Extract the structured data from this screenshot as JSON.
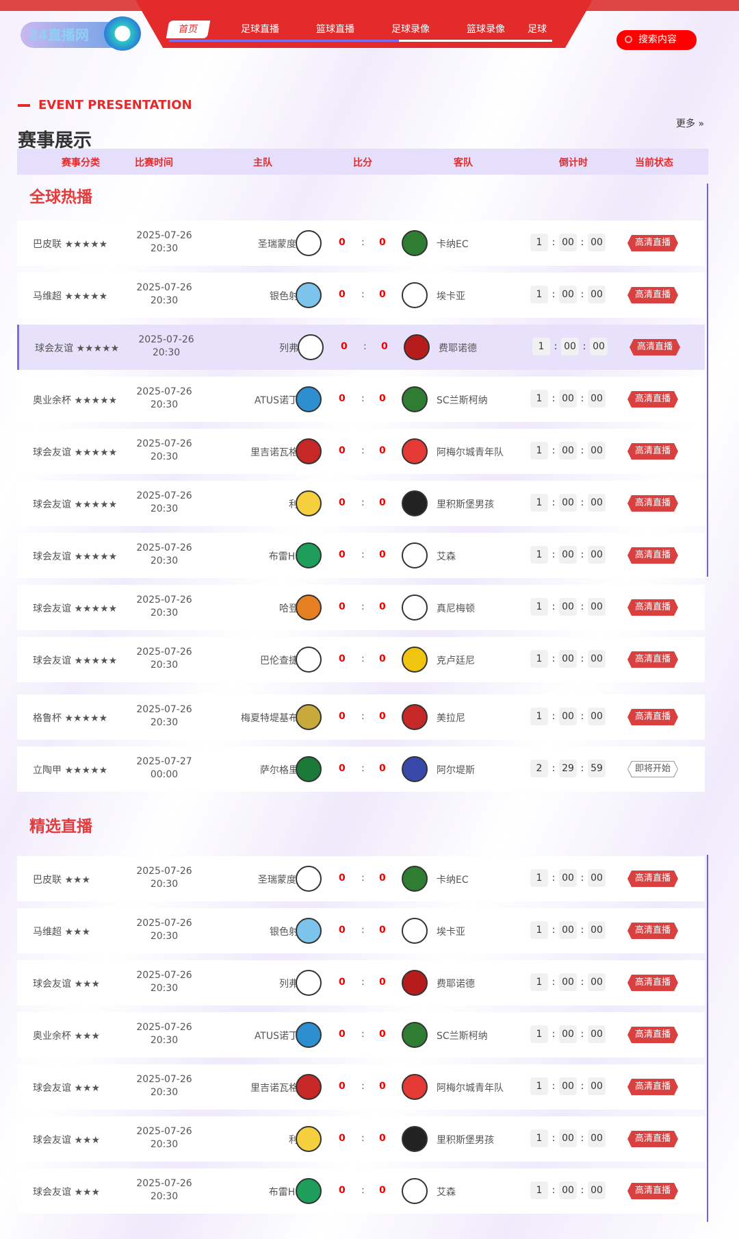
{
  "header": {
    "logo_text": "24直播网",
    "nav": [
      "首页",
      "足球直播",
      "篮球直播",
      "足球录像",
      "篮球录像",
      "足球"
    ],
    "search_label": "搜索内容"
  },
  "intro": {
    "en": "EVENT PRESENTATION",
    "title": "赛事展示",
    "more": "更多 »"
  },
  "table_headers": [
    "赛事分类",
    "比赛时间",
    "主队",
    "比分",
    "客队",
    "倒计时",
    "当前状态"
  ],
  "colors": {
    "accent": "#e32b2b",
    "highlight": "#e8e1fb",
    "border": "#6e64e0"
  },
  "sections": [
    {
      "title": "全球热播",
      "rows": [
        {
          "cat": "巴皮联 ★★★★★",
          "date": "2025-07-26",
          "time": "20:30",
          "home": "圣瑞蒙度PA",
          "hs": "0",
          "as": "0",
          "away": "卡纳EC",
          "cd": [
            "1",
            "00",
            "00"
          ],
          "status": "高清直播",
          "hc": "#fff",
          "ac": "#2e7d32"
        },
        {
          "cat": "马维超 ★★★★★",
          "date": "2025-07-26",
          "time": "20:30",
          "home": "银色射手",
          "hs": "0",
          "as": "0",
          "away": "埃卡亚",
          "cd": [
            "1",
            "00",
            "00"
          ],
          "status": "高清直播",
          "hc": "#7cc4ec",
          "ac": "#fff"
        },
        {
          "cat": "球会友谊 ★★★★★",
          "date": "2025-07-26",
          "time": "20:30",
          "home": "列弗宁",
          "hs": "0",
          "as": "0",
          "away": "费耶诺德",
          "cd": [
            "1",
            "00",
            "00"
          ],
          "status": "高清直播",
          "hc": "#fff",
          "ac": "#b71c1c",
          "hl": true
        },
        {
          "cat": "奥业余杯 ★★★★★",
          "date": "2025-07-26",
          "time": "20:30",
          "home": "ATUS诺丁汉",
          "hs": "0",
          "as": "0",
          "away": "SC兰斯柯纳",
          "cd": [
            "1",
            "00",
            "00"
          ],
          "status": "高清直播",
          "hc": "#2d8fd0",
          "ac": "#2e7d32"
        },
        {
          "cat": "球会友谊 ★★★★★",
          "date": "2025-07-26",
          "time": "20:30",
          "home": "里吉诺瓦格斯",
          "hs": "0",
          "as": "0",
          "away": "阿梅尔城青年队",
          "cd": [
            "1",
            "00",
            "00"
          ],
          "status": "高清直播",
          "hc": "#c62828",
          "ac": "#e53935"
        },
        {
          "cat": "球会友谊 ★★★★★",
          "date": "2025-07-26",
          "time": "20:30",
          "home": "利斯",
          "hs": "0",
          "as": "0",
          "away": "里积斯堡男孩",
          "cd": [
            "1",
            "00",
            "00"
          ],
          "status": "高清直播",
          "hc": "#f4d03f",
          "ac": "#222"
        },
        {
          "cat": "球会友谊 ★★★★★",
          "date": "2025-07-26",
          "time": "20:30",
          "home": "布雷HSC",
          "hs": "0",
          "as": "0",
          "away": "艾森",
          "cd": [
            "1",
            "00",
            "00"
          ],
          "status": "高清直播",
          "hc": "#1e9e5a",
          "ac": "#fff"
        },
        {
          "cat": "球会友谊 ★★★★★",
          "date": "2025-07-26",
          "time": "20:30",
          "home": "哈登堡",
          "hs": "0",
          "as": "0",
          "away": "真尼梅顿",
          "cd": [
            "1",
            "00",
            "00"
          ],
          "status": "高清直播",
          "hc": "#e67e22",
          "ac": "#fff"
        },
        {
          "cat": "球会友谊 ★★★★★",
          "date": "2025-07-26",
          "time": "20:30",
          "home": "巴伦查捷特",
          "hs": "0",
          "as": "0",
          "away": "克卢廷尼",
          "cd": [
            "1",
            "00",
            "00"
          ],
          "status": "高清直播",
          "hc": "#fff",
          "ac": "#f1c40f"
        },
        {
          "cat": "格鲁杯 ★★★★★",
          "date": "2025-07-26",
          "time": "20:30",
          "home": "梅夏特堤基布利",
          "hs": "0",
          "as": "0",
          "away": "美拉尼",
          "cd": [
            "1",
            "00",
            "00"
          ],
          "status": "高清直播",
          "hc": "#c9a93c",
          "ac": "#c62828"
        },
        {
          "cat": "立陶甲 ★★★★★",
          "date": "2025-07-27",
          "time": "00:00",
          "home": "萨尔格里斯",
          "hs": "0",
          "as": "0",
          "away": "阿尔堤斯",
          "cd": [
            "2",
            "29",
            "59"
          ],
          "status": "即将开始",
          "soon": true,
          "hc": "#1b7a3a",
          "ac": "#3949ab"
        }
      ]
    },
    {
      "title": "精选直播",
      "rows": [
        {
          "cat": "巴皮联 ★★★",
          "date": "2025-07-26",
          "time": "20:30",
          "home": "圣瑞蒙度PA",
          "hs": "0",
          "as": "0",
          "away": "卡纳EC",
          "cd": [
            "1",
            "00",
            "00"
          ],
          "status": "高清直播",
          "hc": "#fff",
          "ac": "#2e7d32"
        },
        {
          "cat": "马维超 ★★★",
          "date": "2025-07-26",
          "time": "20:30",
          "home": "银色射手",
          "hs": "0",
          "as": "0",
          "away": "埃卡亚",
          "cd": [
            "1",
            "00",
            "00"
          ],
          "status": "高清直播",
          "hc": "#7cc4ec",
          "ac": "#fff"
        },
        {
          "cat": "球会友谊 ★★★",
          "date": "2025-07-26",
          "time": "20:30",
          "home": "列弗宁",
          "hs": "0",
          "as": "0",
          "away": "费耶诺德",
          "cd": [
            "1",
            "00",
            "00"
          ],
          "status": "高清直播",
          "hc": "#fff",
          "ac": "#b71c1c"
        },
        {
          "cat": "奥业余杯 ★★★",
          "date": "2025-07-26",
          "time": "20:30",
          "home": "ATUS诺丁汉",
          "hs": "0",
          "as": "0",
          "away": "SC兰斯柯纳",
          "cd": [
            "1",
            "00",
            "00"
          ],
          "status": "高清直播",
          "hc": "#2d8fd0",
          "ac": "#2e7d32"
        },
        {
          "cat": "球会友谊 ★★★",
          "date": "2025-07-26",
          "time": "20:30",
          "home": "里吉诺瓦格斯",
          "hs": "0",
          "as": "0",
          "away": "阿梅尔城青年队",
          "cd": [
            "1",
            "00",
            "00"
          ],
          "status": "高清直播",
          "hc": "#c62828",
          "ac": "#e53935"
        },
        {
          "cat": "球会友谊 ★★★",
          "date": "2025-07-26",
          "time": "20:30",
          "home": "利斯",
          "hs": "0",
          "as": "0",
          "away": "里积斯堡男孩",
          "cd": [
            "1",
            "00",
            "00"
          ],
          "status": "高清直播",
          "hc": "#f4d03f",
          "ac": "#222"
        },
        {
          "cat": "球会友谊 ★★★",
          "date": "2025-07-26",
          "time": "20:30",
          "home": "布雷HSC",
          "hs": "0",
          "as": "0",
          "away": "艾森",
          "cd": [
            "1",
            "00",
            "00"
          ],
          "status": "高清直播",
          "hc": "#1e9e5a",
          "ac": "#fff"
        }
      ]
    }
  ]
}
